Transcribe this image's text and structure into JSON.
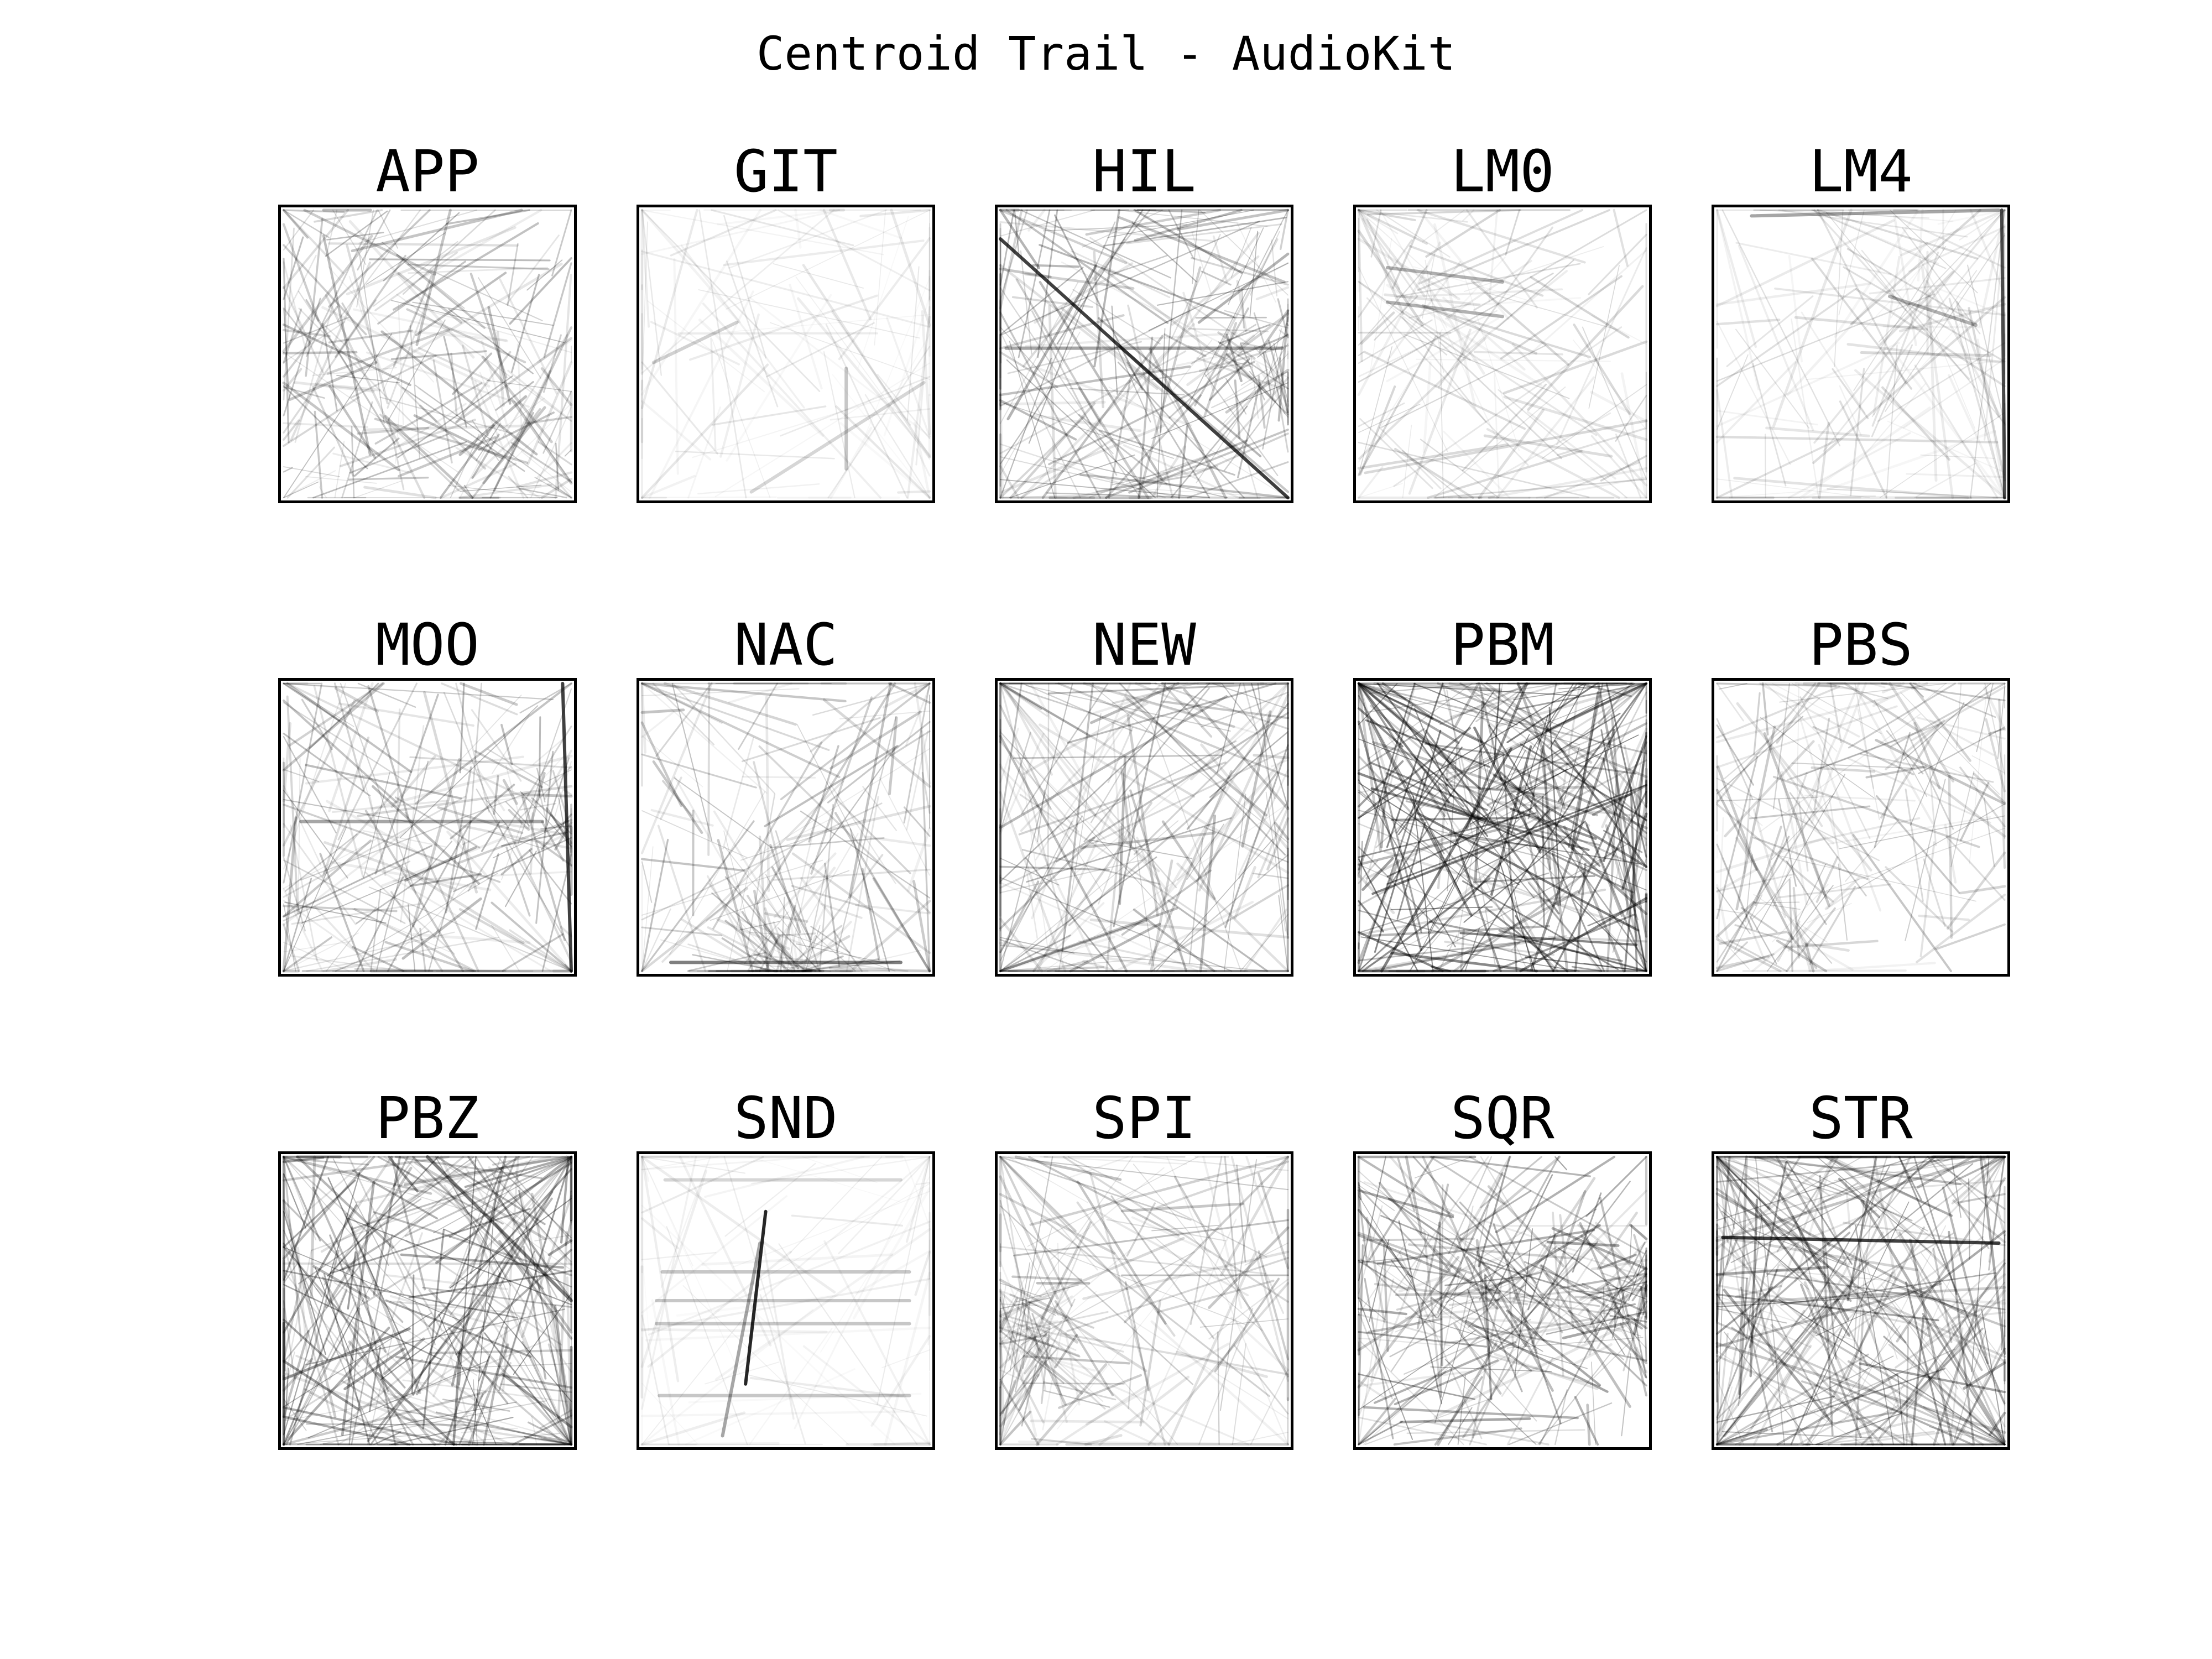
{
  "chart_data": {
    "type": "line",
    "title": "Centroid Trail - AudioKit",
    "panels": [
      {
        "label": "APP",
        "density": 0.75,
        "opacity": 0.16,
        "clusters": [
          [
            0.25,
            0.25,
            0.14
          ],
          [
            0.3,
            0.72,
            0.12
          ],
          [
            0.82,
            0.82,
            0.1
          ]
        ],
        "strokes": []
      },
      {
        "label": "GIT",
        "density": 0.25,
        "opacity": 0.06,
        "clusters": [
          [
            0.35,
            0.4,
            0.3
          ],
          [
            0.7,
            0.6,
            0.25
          ]
        ],
        "strokes": [
          [
            0.04,
            0.53,
            0.33,
            0.39,
            0.18
          ],
          [
            0.38,
            0.98,
            0.98,
            0.6,
            0.16
          ],
          [
            0.71,
            0.55,
            0.71,
            0.9,
            0.22
          ]
        ]
      },
      {
        "label": "HIL",
        "density": 0.8,
        "opacity": 0.18,
        "clusters": [
          [
            0.3,
            0.35,
            0.22
          ],
          [
            0.88,
            0.45,
            0.07
          ],
          [
            0.4,
            0.75,
            0.2
          ]
        ],
        "strokes": [
          [
            0.0,
            0.1,
            1.0,
            1.0,
            0.75
          ],
          [
            0.02,
            0.48,
            0.98,
            0.48,
            0.35
          ]
        ]
      },
      {
        "label": "LM0",
        "density": 0.45,
        "opacity": 0.1,
        "clusters": [
          [
            0.25,
            0.3,
            0.14
          ],
          [
            0.55,
            0.75,
            0.2
          ]
        ],
        "strokes": [
          [
            0.1,
            0.2,
            0.5,
            0.25,
            0.3
          ],
          [
            0.1,
            0.32,
            0.5,
            0.37,
            0.3
          ]
        ]
      },
      {
        "label": "LM4",
        "density": 0.4,
        "opacity": 0.09,
        "clusters": [
          [
            0.6,
            0.5,
            0.22
          ]
        ],
        "strokes": [
          [
            0.99,
            0.0,
            1.0,
            1.0,
            0.7
          ],
          [
            0.12,
            0.02,
            0.98,
            0.0,
            0.35
          ],
          [
            0.6,
            0.3,
            0.9,
            0.4,
            0.3
          ]
        ]
      },
      {
        "label": "MOO",
        "density": 0.7,
        "opacity": 0.17,
        "clusters": [
          [
            0.45,
            0.5,
            0.2
          ],
          [
            0.9,
            0.45,
            0.06
          ],
          [
            0.3,
            0.85,
            0.16
          ]
        ],
        "strokes": [
          [
            0.97,
            0.0,
            1.0,
            1.0,
            0.75
          ],
          [
            0.06,
            0.48,
            0.9,
            0.48,
            0.35
          ]
        ]
      },
      {
        "label": "NAC",
        "density": 0.7,
        "opacity": 0.15,
        "clusters": [
          [
            0.5,
            0.4,
            0.22
          ],
          [
            0.5,
            0.97,
            0.08
          ]
        ],
        "strokes": [
          [
            0.1,
            0.97,
            0.9,
            0.97,
            0.5
          ]
        ]
      },
      {
        "label": "NEW",
        "density": 0.65,
        "opacity": 0.17,
        "clusters": [
          [
            0.5,
            0.5,
            0.27
          ]
        ],
        "strokes": []
      },
      {
        "label": "PBM",
        "density": 1.0,
        "opacity": 0.3,
        "clusters": [
          [
            0.45,
            0.5,
            0.24
          ],
          [
            0.6,
            0.35,
            0.2
          ]
        ],
        "strokes": []
      },
      {
        "label": "PBS",
        "density": 0.65,
        "opacity": 0.14,
        "clusters": [
          [
            0.3,
            0.3,
            0.16
          ],
          [
            0.78,
            0.25,
            0.12
          ],
          [
            0.2,
            0.85,
            0.08
          ]
        ],
        "strokes": []
      },
      {
        "label": "PBZ",
        "density": 0.95,
        "opacity": 0.24,
        "clusters": [
          [
            0.35,
            0.7,
            0.22
          ],
          [
            0.65,
            0.4,
            0.24
          ]
        ],
        "strokes": [
          [
            0.5,
            0.0,
            1.0,
            0.5,
            0.5
          ]
        ]
      },
      {
        "label": "SND",
        "density": 0.2,
        "opacity": 0.05,
        "clusters": [
          [
            0.45,
            0.5,
            0.3
          ]
        ],
        "strokes": [
          [
            0.43,
            0.19,
            0.36,
            0.79,
            0.85
          ],
          [
            0.41,
            0.3,
            0.28,
            0.97,
            0.35
          ],
          [
            0.07,
            0.4,
            0.93,
            0.4,
            0.22
          ],
          [
            0.05,
            0.5,
            0.93,
            0.5,
            0.22
          ],
          [
            0.05,
            0.58,
            0.93,
            0.58,
            0.22
          ],
          [
            0.06,
            0.83,
            0.93,
            0.83,
            0.22
          ],
          [
            0.08,
            0.08,
            0.9,
            0.08,
            0.16
          ]
        ]
      },
      {
        "label": "SPI",
        "density": 0.65,
        "opacity": 0.15,
        "clusters": [
          [
            0.5,
            0.45,
            0.25
          ],
          [
            0.1,
            0.6,
            0.08
          ]
        ],
        "strokes": []
      },
      {
        "label": "SQR",
        "density": 0.9,
        "opacity": 0.22,
        "clusters": [
          [
            0.25,
            0.5,
            0.16
          ],
          [
            0.6,
            0.5,
            0.12
          ],
          [
            0.95,
            0.5,
            0.05
          ]
        ],
        "strokes": []
      },
      {
        "label": "STR",
        "density": 0.9,
        "opacity": 0.22,
        "clusters": [
          [
            0.5,
            0.45,
            0.25
          ]
        ],
        "strokes": [
          [
            0.02,
            0.28,
            0.98,
            0.3,
            0.75
          ]
        ]
      }
    ]
  }
}
